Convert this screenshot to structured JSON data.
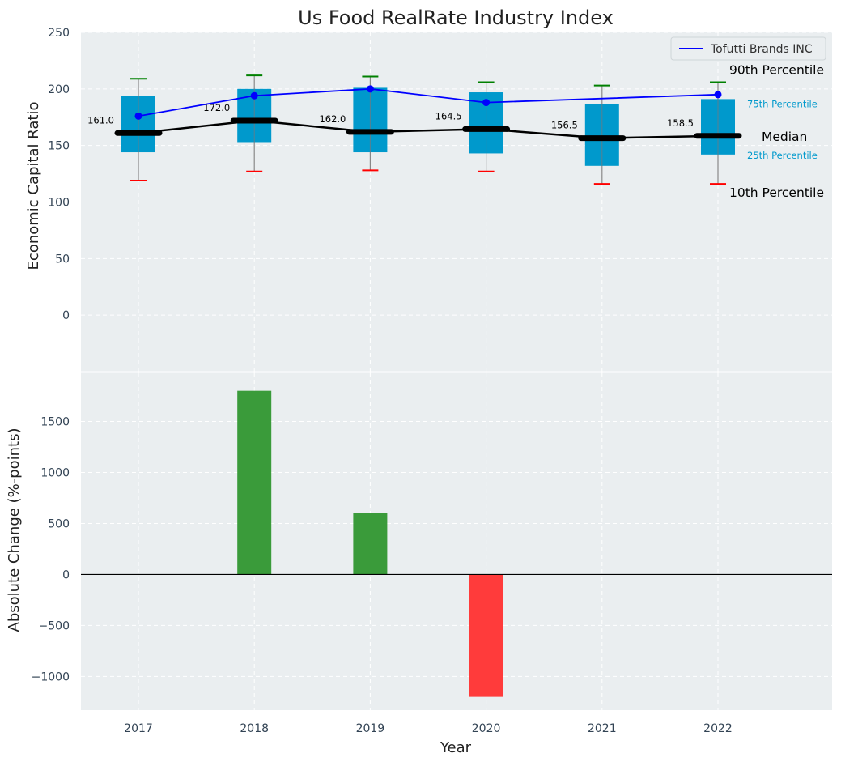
{
  "chart_data": [
    {
      "type": "box",
      "title": "Us Food RealRate Industry Index",
      "ylabel": "Economic Capital Ratio",
      "ylim": [
        -50,
        250
      ],
      "yticks": [
        0,
        50,
        100,
        150,
        200,
        250
      ],
      "grid": true,
      "legend": {
        "placement": "top-right",
        "entries": [
          "Tofutti Brands INC"
        ]
      },
      "categories": [
        "2017",
        "2018",
        "2019",
        "2020",
        "2021",
        "2022"
      ],
      "p10": [
        119,
        127,
        128,
        127,
        116,
        116
      ],
      "p25": [
        144,
        153,
        144,
        143,
        132,
        142
      ],
      "median": [
        161.0,
        172.0,
        162.0,
        164.5,
        156.5,
        158.5
      ],
      "median_labels": [
        "161.0",
        "172.0",
        "162.0",
        "164.5",
        "156.5",
        "158.5"
      ],
      "p75": [
        194,
        200,
        201,
        197,
        187,
        191
      ],
      "p90": [
        209,
        212,
        211,
        206,
        203,
        206
      ],
      "company": {
        "name": "Tofutti Brands INC",
        "values": [
          176,
          194,
          200,
          188,
          null,
          195
        ]
      },
      "annotations": {
        "p90": "90th Percentile",
        "p75": "75th Percentile",
        "median": "Median",
        "p25": "25th Percentile",
        "p10": "10th Percentile"
      },
      "colors": {
        "box": "#0099cc",
        "company": "#0000ff",
        "median": "#000000",
        "p90_cap": "#008000",
        "p10_cap": "#ff0000",
        "annotation_small": "#0099cc"
      }
    },
    {
      "type": "bar",
      "ylabel": "Absolute Change (%-points)",
      "xlabel": "Year",
      "ylim": [
        -1330,
        1980
      ],
      "yticks": [
        -1000,
        -500,
        0,
        500,
        1000,
        1500
      ],
      "ytick_labels": [
        "−1000",
        "−500",
        "0",
        "500",
        "1000",
        "1500"
      ],
      "grid": true,
      "categories": [
        "2017",
        "2018",
        "2019",
        "2020",
        "2021",
        "2022"
      ],
      "values": [
        0,
        1800,
        600,
        -1200,
        0,
        0
      ],
      "colors": {
        "positive": "#3a9b3a",
        "negative": "#ff3b3b"
      }
    }
  ]
}
